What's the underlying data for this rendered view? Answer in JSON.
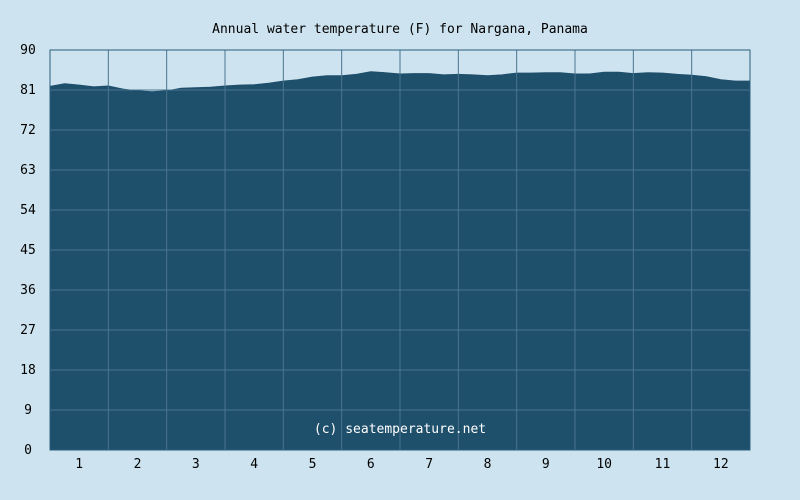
{
  "chart_data": {
    "type": "area",
    "title": "Annual water temperature (F) for Nargana, Panama",
    "xlabel": "",
    "ylabel": "",
    "xlim": [
      0.5,
      12.5
    ],
    "ylim": [
      0,
      90
    ],
    "grid": true,
    "yticks": [
      0,
      9,
      18,
      27,
      36,
      45,
      54,
      63,
      72,
      81,
      90
    ],
    "xticks": [
      "1",
      "2",
      "3",
      "4",
      "5",
      "6",
      "7",
      "8",
      "9",
      "10",
      "11",
      "12"
    ],
    "series": [
      {
        "x": [
          0.5,
          0.75,
          1.0,
          1.25,
          1.5,
          1.75,
          2.0,
          2.25,
          2.5,
          2.75,
          3.0,
          3.25,
          3.5,
          3.75,
          4.0,
          4.25,
          4.5,
          4.75,
          5.0,
          5.25,
          5.5,
          5.75,
          6.0,
          6.25,
          6.5,
          6.75,
          7.0,
          7.25,
          7.5,
          7.75,
          8.0,
          8.25,
          8.5,
          8.75,
          9.0,
          9.25,
          9.5,
          9.75,
          10.0,
          10.25,
          10.5,
          10.75,
          11.0,
          11.25,
          11.5,
          11.75,
          12.0,
          12.25,
          12.5
        ],
        "values": [
          81.8,
          82.4,
          82.1,
          81.7,
          81.9,
          81.2,
          80.8,
          80.6,
          80.8,
          81.4,
          81.5,
          81.6,
          81.9,
          82.1,
          82.2,
          82.5,
          83.0,
          83.3,
          83.9,
          84.2,
          84.2,
          84.5,
          85.1,
          84.9,
          84.6,
          84.7,
          84.7,
          84.4,
          84.5,
          84.4,
          84.2,
          84.4,
          84.8,
          84.8,
          84.9,
          84.9,
          84.6,
          84.6,
          85.0,
          85.0,
          84.7,
          84.9,
          84.8,
          84.5,
          84.3,
          84.0,
          83.3,
          83.0,
          83.0
        ]
      }
    ],
    "fill_color": "#1e4f6b",
    "grid_color": "#4a7590",
    "background_color": "#cde3ef"
  },
  "credit": "(c) seatemperature.net"
}
